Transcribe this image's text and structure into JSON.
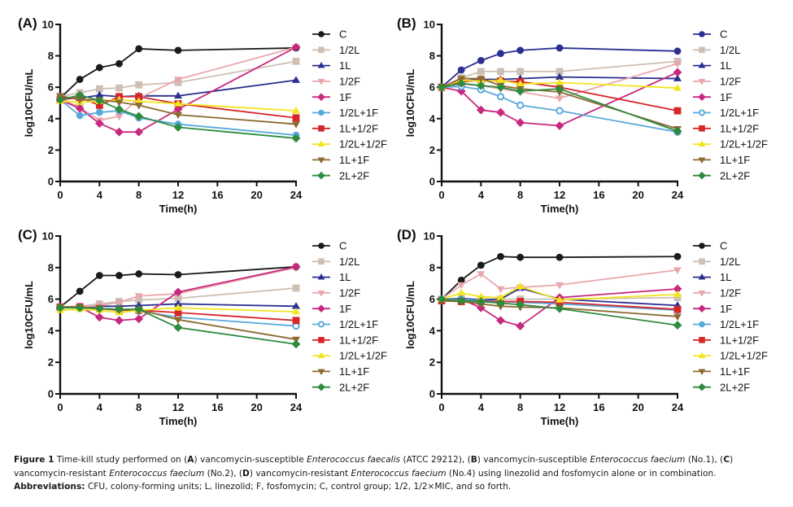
{
  "figure": {
    "caption_parts": [
      {
        "text": "Figure 1",
        "style": "b"
      },
      {
        "text": " Time-kill study performed on (",
        "style": ""
      },
      {
        "text": "A",
        "style": "b"
      },
      {
        "text": ") vancomycin-susceptible ",
        "style": ""
      },
      {
        "text": "Enterococcus faecalis",
        "style": "i"
      },
      {
        "text": " (ATCC 29212), (",
        "style": ""
      },
      {
        "text": "B",
        "style": "b"
      },
      {
        "text": ") vancomycin-susceptible ",
        "style": ""
      },
      {
        "text": "Enterococcus faecium",
        "style": "i"
      },
      {
        "text": " (No.1), (",
        "style": ""
      },
      {
        "text": "C",
        "style": "b"
      },
      {
        "text": ") vancomycin-resistant ",
        "style": ""
      },
      {
        "text": "Enterococcus faecium",
        "style": "i"
      },
      {
        "text": " (No.2), (",
        "style": ""
      },
      {
        "text": "D",
        "style": "b"
      },
      {
        "text": ") vancomycin-resistant ",
        "style": ""
      },
      {
        "text": "Enterococcus faecium",
        "style": "i"
      },
      {
        "text": " (No.4) using linezolid and fosfomycin alone or in combination.",
        "style": ""
      }
    ],
    "abbreviations_label": "Abbreviations:",
    "abbreviations_text": " CFU, colony-forming units; L, linezolid; F, fosfomycin; C, control group; 1/2, 1/2×MIC, and so forth."
  },
  "chart_data": [
    {
      "type": "line",
      "panel": "(A)",
      "xlabel": "Time(h)",
      "ylabel": "log10CFU/mL",
      "xlim": [
        0,
        24
      ],
      "ylim": [
        0,
        10
      ],
      "xticks": [
        0,
        4,
        8,
        12,
        16,
        20,
        24
      ],
      "yticks": [
        0,
        2,
        4,
        6,
        8,
        10
      ],
      "grid": false,
      "legend_position": "right",
      "x": [
        0,
        2,
        4,
        6,
        8,
        12,
        24
      ],
      "series": [
        {
          "name": "C",
          "color": "#1a1a1a",
          "marker": "circle",
          "values": [
            5.3,
            6.5,
            7.25,
            7.5,
            8.45,
            8.35,
            8.5
          ]
        },
        {
          "name": "1/2L",
          "color": "#cdbfb4",
          "marker": "square",
          "values": [
            5.4,
            5.65,
            5.9,
            5.95,
            6.15,
            6.3,
            7.65
          ]
        },
        {
          "name": "1L",
          "color": "#2b2f8f",
          "marker": "triangle-up",
          "values": [
            5.3,
            5.3,
            5.5,
            5.4,
            5.45,
            5.45,
            6.45
          ]
        },
        {
          "name": "1/2F",
          "color": "#e8a7ad",
          "marker": "triangle-down",
          "values": [
            5.3,
            4.7,
            3.9,
            4.15,
            5.3,
            6.5,
            8.55
          ]
        },
        {
          "name": "1F",
          "color": "#c8287f",
          "marker": "diamond",
          "values": [
            5.2,
            4.65,
            3.7,
            3.15,
            3.15,
            4.6,
            8.55
          ]
        },
        {
          "name": "1/2L+1F",
          "color": "#5aa9dc",
          "marker": "circle",
          "values": [
            5.2,
            4.2,
            4.4,
            4.5,
            4.05,
            3.65,
            2.95
          ]
        },
        {
          "name": "1L+1/2F",
          "color": "#d6262a",
          "marker": "square",
          "values": [
            5.2,
            5.35,
            4.85,
            5.4,
            5.4,
            4.95,
            4.05
          ]
        },
        {
          "name": "1/2L+1/2F",
          "color": "#f2e51e",
          "marker": "triangle-up",
          "values": [
            5.1,
            5.05,
            5.1,
            5.2,
            5.1,
            4.95,
            4.5
          ]
        },
        {
          "name": "1L+1F",
          "color": "#8c6a32",
          "marker": "triangle-down",
          "values": [
            5.45,
            5.2,
            5.2,
            5.05,
            4.85,
            4.25,
            3.65
          ]
        },
        {
          "name": "2L+2F",
          "color": "#2e8b3e",
          "marker": "diamond",
          "values": [
            5.2,
            5.5,
            5.15,
            4.6,
            4.15,
            3.45,
            2.75
          ]
        }
      ]
    },
    {
      "type": "line",
      "panel": "(B)",
      "xlabel": "Time(h)",
      "ylabel": "log10CFU/mL",
      "xlim": [
        0,
        24
      ],
      "ylim": [
        0,
        10
      ],
      "xticks": [
        0,
        4,
        8,
        12,
        16,
        20,
        24
      ],
      "yticks": [
        0,
        2,
        4,
        6,
        8,
        10
      ],
      "grid": false,
      "legend_position": "right",
      "x": [
        0,
        2,
        4,
        6,
        8,
        12,
        24
      ],
      "series": [
        {
          "name": "C",
          "color": "#2b2f8f",
          "marker": "circle",
          "values": [
            6.0,
            7.1,
            7.7,
            8.15,
            8.35,
            8.5,
            8.3
          ]
        },
        {
          "name": "1/2L",
          "color": "#cdbfb4",
          "marker": "square",
          "values": [
            6.0,
            6.6,
            7.0,
            7.0,
            7.0,
            7.0,
            7.65
          ]
        },
        {
          "name": "1L",
          "color": "#2b2f8f",
          "marker": "triangle-up",
          "values": [
            6.0,
            6.4,
            6.5,
            6.5,
            6.55,
            6.65,
            6.55
          ]
        },
        {
          "name": "1/2F",
          "color": "#e8a7ad",
          "marker": "triangle-down",
          "values": [
            6.0,
            6.2,
            6.1,
            5.9,
            5.7,
            5.3,
            7.5
          ]
        },
        {
          "name": "1F",
          "color": "#c8287f",
          "marker": "diamond",
          "values": [
            6.0,
            5.75,
            4.55,
            4.4,
            3.75,
            3.55,
            6.95
          ]
        },
        {
          "name": "1/2L+1F",
          "color": "#5aa9dc",
          "marker": "circle-open",
          "values": [
            6.0,
            6.05,
            5.85,
            5.4,
            4.85,
            4.5,
            3.15
          ]
        },
        {
          "name": "1L+1/2F",
          "color": "#d6262a",
          "marker": "square",
          "values": [
            6.0,
            6.35,
            6.45,
            6.4,
            6.35,
            6.0,
            4.5
          ]
        },
        {
          "name": "1/2L+1/2F",
          "color": "#f2e51e",
          "marker": "triangle-up",
          "values": [
            6.0,
            6.45,
            6.4,
            6.45,
            6.2,
            6.3,
            5.95
          ]
        },
        {
          "name": "1L+1F",
          "color": "#8c6a32",
          "marker": "triangle-down",
          "values": [
            6.0,
            6.55,
            6.55,
            6.1,
            5.9,
            5.7,
            3.35
          ]
        },
        {
          "name": "2L+2F",
          "color": "#2e8b3e",
          "marker": "diamond",
          "values": [
            6.0,
            6.25,
            6.1,
            6.0,
            5.75,
            5.9,
            3.2
          ]
        }
      ]
    },
    {
      "type": "line",
      "panel": "(C)",
      "xlabel": "Time(h)",
      "ylabel": "log10CFU/mL",
      "xlim": [
        0,
        24
      ],
      "ylim": [
        0,
        10
      ],
      "xticks": [
        0,
        4,
        8,
        12,
        16,
        20,
        24
      ],
      "yticks": [
        0,
        2,
        4,
        6,
        8,
        10
      ],
      "grid": false,
      "legend_position": "right",
      "x": [
        0,
        2,
        4,
        6,
        8,
        12,
        24
      ],
      "series": [
        {
          "name": "C",
          "color": "#1a1a1a",
          "marker": "circle",
          "values": [
            5.5,
            6.5,
            7.5,
            7.5,
            7.6,
            7.55,
            8.05
          ]
        },
        {
          "name": "1/2L",
          "color": "#cdbfb4",
          "marker": "square",
          "values": [
            5.5,
            5.55,
            5.7,
            5.85,
            5.95,
            6.05,
            6.7
          ]
        },
        {
          "name": "1L",
          "color": "#2b2f8f",
          "marker": "triangle-up",
          "values": [
            5.5,
            5.5,
            5.55,
            5.55,
            5.6,
            5.7,
            5.55
          ]
        },
        {
          "name": "1/2F",
          "color": "#e8a7ad",
          "marker": "triangle-down",
          "values": [
            5.5,
            5.5,
            5.6,
            5.8,
            6.2,
            6.35,
            8.0
          ]
        },
        {
          "name": "1F",
          "color": "#c8287f",
          "marker": "diamond",
          "values": [
            5.5,
            5.5,
            4.85,
            4.65,
            4.75,
            6.45,
            8.05
          ]
        },
        {
          "name": "1/2L+1F",
          "color": "#5aa9dc",
          "marker": "circle-open",
          "values": [
            5.5,
            5.5,
            5.4,
            5.35,
            5.25,
            4.85,
            4.3
          ]
        },
        {
          "name": "1L+1/2F",
          "color": "#d6262a",
          "marker": "square",
          "values": [
            5.5,
            5.5,
            5.4,
            5.3,
            5.3,
            5.15,
            4.65
          ]
        },
        {
          "name": "1/2L+1/2F",
          "color": "#f2e51e",
          "marker": "triangle-up",
          "values": [
            5.3,
            5.35,
            5.3,
            5.15,
            5.3,
            5.45,
            5.2
          ]
        },
        {
          "name": "1L+1F",
          "color": "#8c6a32",
          "marker": "triangle-down",
          "values": [
            5.5,
            5.5,
            5.4,
            5.35,
            5.35,
            4.7,
            3.45
          ]
        },
        {
          "name": "2L+2F",
          "color": "#2e8b3e",
          "marker": "diamond",
          "values": [
            5.45,
            5.45,
            5.4,
            5.35,
            5.35,
            4.2,
            3.15
          ]
        }
      ]
    },
    {
      "type": "line",
      "panel": "(D)",
      "xlabel": "Time(h)",
      "ylabel": "log10CFU/mL",
      "xlim": [
        0,
        24
      ],
      "ylim": [
        0,
        10
      ],
      "xticks": [
        0,
        4,
        8,
        12,
        16,
        20,
        24
      ],
      "yticks": [
        0,
        2,
        4,
        6,
        8,
        10
      ],
      "grid": false,
      "legend_position": "right",
      "x": [
        0,
        2,
        4,
        6,
        8,
        12,
        24
      ],
      "series": [
        {
          "name": "C",
          "color": "#1a1a1a",
          "marker": "circle",
          "values": [
            6.0,
            7.2,
            8.15,
            8.7,
            8.65,
            8.65,
            8.7
          ]
        },
        {
          "name": "1/2L",
          "color": "#cdbfb4",
          "marker": "square",
          "values": [
            6.0,
            6.0,
            6.0,
            6.0,
            6.0,
            6.0,
            6.1
          ]
        },
        {
          "name": "1L",
          "color": "#2b2f8f",
          "marker": "triangle-up",
          "values": [
            6.0,
            6.05,
            5.95,
            6.0,
            6.7,
            6.0,
            5.6
          ]
        },
        {
          "name": "1/2F",
          "color": "#e8a7ad",
          "marker": "triangle-down",
          "values": [
            6.0,
            6.9,
            7.6,
            6.65,
            6.75,
            6.9,
            7.85
          ]
        },
        {
          "name": "1F",
          "color": "#c8287f",
          "marker": "diamond",
          "values": [
            6.0,
            6.0,
            5.45,
            4.65,
            4.3,
            6.1,
            6.65
          ]
        },
        {
          "name": "1/2L+1F",
          "color": "#5aa9dc",
          "marker": "circle",
          "values": [
            6.0,
            6.0,
            5.9,
            5.85,
            5.8,
            5.7,
            5.3
          ]
        },
        {
          "name": "1L+1/2F",
          "color": "#d6262a",
          "marker": "square",
          "values": [
            5.9,
            5.85,
            5.85,
            5.85,
            5.85,
            5.8,
            5.35
          ]
        },
        {
          "name": "1/2L+1/2F",
          "color": "#f2e51e",
          "marker": "triangle-up",
          "values": [
            6.0,
            6.4,
            6.15,
            6.1,
            6.8,
            5.95,
            6.3
          ]
        },
        {
          "name": "1L+1F",
          "color": "#8c6a32",
          "marker": "triangle-down",
          "values": [
            5.9,
            5.85,
            5.7,
            5.55,
            5.5,
            5.45,
            4.9
          ]
        },
        {
          "name": "2L+2F",
          "color": "#2e8b3e",
          "marker": "diamond",
          "values": [
            6.0,
            5.9,
            5.85,
            5.75,
            5.65,
            5.4,
            4.35
          ]
        }
      ]
    }
  ]
}
